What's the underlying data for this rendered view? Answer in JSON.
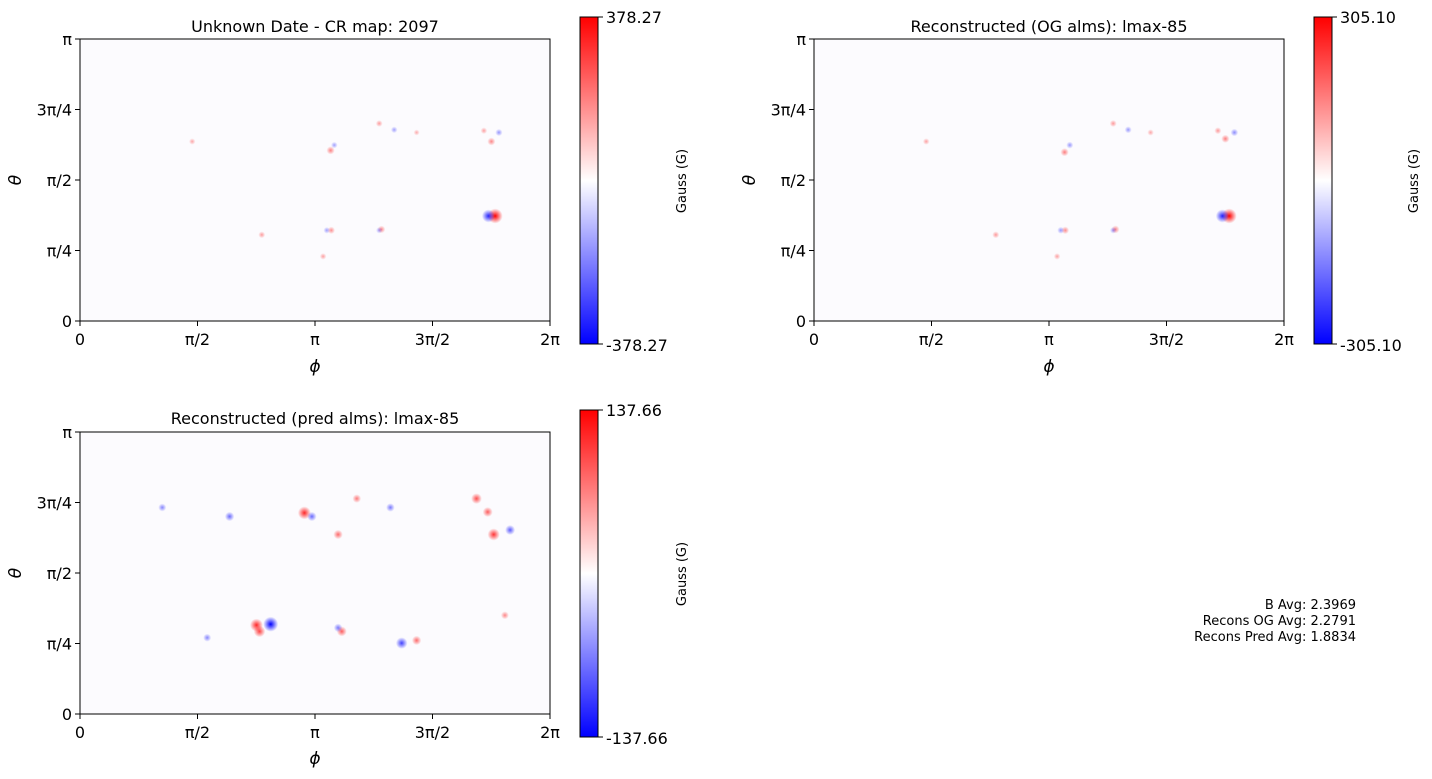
{
  "chart_data": [
    {
      "type": "heatmap",
      "title": "Unknown Date - CR map: 2097",
      "xlabel": "ϕ",
      "ylabel": "θ",
      "x_ticks": [
        "0",
        "π/2",
        "π",
        "3π/2",
        "2π"
      ],
      "y_ticks": [
        "0",
        "π/4",
        "π/2",
        "3π/4",
        "π"
      ],
      "xlim": [
        0,
        6.2832
      ],
      "ylim": [
        0,
        3.1416
      ],
      "colorbar": {
        "label": "Gauss (G)",
        "max_label": "378.27",
        "min_label": "-378.27",
        "max": 378.27,
        "min": -378.27,
        "colormap": "bwr"
      },
      "features": [
        {
          "phi": 5.55,
          "theta": 1.17,
          "value": 378.27
        },
        {
          "phi": 5.46,
          "theta": 1.17,
          "value": -300
        },
        {
          "phi": 3.36,
          "theta": 1.01,
          "value": 90
        },
        {
          "phi": 3.3,
          "theta": 1.01,
          "value": -60
        },
        {
          "phi": 4.03,
          "theta": 1.02,
          "value": 100
        },
        {
          "phi": 4.0,
          "theta": 1.01,
          "value": -50
        },
        {
          "phi": 3.35,
          "theta": 1.9,
          "value": 120
        },
        {
          "phi": 3.4,
          "theta": 1.96,
          "value": -60
        },
        {
          "phi": 4.0,
          "theta": 2.2,
          "value": 70
        },
        {
          "phi": 4.2,
          "theta": 2.13,
          "value": -60
        },
        {
          "phi": 5.5,
          "theta": 2.0,
          "value": 110
        },
        {
          "phi": 5.6,
          "theta": 2.1,
          "value": -80
        },
        {
          "phi": 5.4,
          "theta": 2.12,
          "value": 60
        },
        {
          "phi": 1.5,
          "theta": 2.0,
          "value": 50
        },
        {
          "phi": 2.43,
          "theta": 0.96,
          "value": 70
        },
        {
          "phi": 3.25,
          "theta": 0.72,
          "value": 60
        },
        {
          "phi": 4.5,
          "theta": 2.1,
          "value": 40
        }
      ]
    },
    {
      "type": "heatmap",
      "title": "Reconstructed (OG alms): lmax-85",
      "xlabel": "ϕ",
      "ylabel": "θ",
      "x_ticks": [
        "0",
        "π/2",
        "π",
        "3π/2",
        "2π"
      ],
      "y_ticks": [
        "0",
        "π/4",
        "π/2",
        "3π/4",
        "π"
      ],
      "xlim": [
        0,
        6.2832
      ],
      "ylim": [
        0,
        3.1416
      ],
      "colorbar": {
        "label": "Gauss (G)",
        "max_label": "305.10",
        "min_label": "-305.10",
        "max": 305.1,
        "min": -305.1,
        "colormap": "bwr"
      },
      "features": [
        {
          "phi": 5.55,
          "theta": 1.17,
          "value": 305.1
        },
        {
          "phi": 5.46,
          "theta": 1.17,
          "value": -250
        },
        {
          "phi": 3.36,
          "theta": 1.01,
          "value": 80
        },
        {
          "phi": 3.3,
          "theta": 1.01,
          "value": -60
        },
        {
          "phi": 4.03,
          "theta": 1.02,
          "value": 90
        },
        {
          "phi": 4.0,
          "theta": 1.01,
          "value": -50
        },
        {
          "phi": 3.35,
          "theta": 1.88,
          "value": 100
        },
        {
          "phi": 3.42,
          "theta": 1.96,
          "value": -60
        },
        {
          "phi": 4.0,
          "theta": 2.2,
          "value": 60
        },
        {
          "phi": 4.2,
          "theta": 2.13,
          "value": -60
        },
        {
          "phi": 5.5,
          "theta": 2.03,
          "value": 100
        },
        {
          "phi": 5.62,
          "theta": 2.1,
          "value": -80
        },
        {
          "phi": 5.4,
          "theta": 2.12,
          "value": 60
        },
        {
          "phi": 1.5,
          "theta": 2.0,
          "value": 50
        },
        {
          "phi": 2.43,
          "theta": 0.96,
          "value": 60
        },
        {
          "phi": 3.25,
          "theta": 0.72,
          "value": 50
        },
        {
          "phi": 4.5,
          "theta": 2.1,
          "value": 40
        }
      ]
    },
    {
      "type": "heatmap",
      "title": "Reconstructed (pred alms): lmax-85",
      "xlabel": "ϕ",
      "ylabel": "θ",
      "x_ticks": [
        "0",
        "π/2",
        "π",
        "3π/2",
        "2π"
      ],
      "y_ticks": [
        "0",
        "π/4",
        "π/2",
        "3π/4",
        "π"
      ],
      "xlim": [
        0,
        6.2832
      ],
      "ylim": [
        0,
        3.1416
      ],
      "colorbar": {
        "label": "Gauss (G)",
        "max_label": "137.66",
        "min_label": "-137.66",
        "max": 137.66,
        "min": -137.66,
        "colormap": "bwr"
      },
      "features": [
        {
          "phi": 2.36,
          "theta": 0.99,
          "value": 110
        },
        {
          "phi": 2.4,
          "theta": 0.92,
          "value": 90
        },
        {
          "phi": 2.55,
          "theta": 1.0,
          "value": -137.66
        },
        {
          "phi": 3.5,
          "theta": 0.92,
          "value": 70
        },
        {
          "phi": 3.45,
          "theta": 0.96,
          "value": -50
        },
        {
          "phi": 4.5,
          "theta": 0.82,
          "value": 60
        },
        {
          "phi": 4.3,
          "theta": 0.79,
          "value": -90
        },
        {
          "phi": 1.7,
          "theta": 0.85,
          "value": -40
        },
        {
          "phi": 3.0,
          "theta": 2.24,
          "value": 110
        },
        {
          "phi": 3.1,
          "theta": 2.2,
          "value": -60
        },
        {
          "phi": 3.45,
          "theta": 2.0,
          "value": 60
        },
        {
          "phi": 2.0,
          "theta": 2.2,
          "value": -60
        },
        {
          "phi": 5.3,
          "theta": 2.4,
          "value": 80
        },
        {
          "phi": 5.45,
          "theta": 2.25,
          "value": 70
        },
        {
          "phi": 5.53,
          "theta": 2.0,
          "value": 100
        },
        {
          "phi": 5.75,
          "theta": 2.05,
          "value": -70
        },
        {
          "phi": 4.15,
          "theta": 2.3,
          "value": -50
        },
        {
          "phi": 3.7,
          "theta": 2.4,
          "value": 50
        },
        {
          "phi": 5.68,
          "theta": 1.1,
          "value": 40
        },
        {
          "phi": 1.1,
          "theta": 2.3,
          "value": -40
        }
      ]
    }
  ],
  "stats": [
    "B Avg: 2.3969",
    "Recons OG Avg: 2.2791",
    "Recons Pred Avg: 1.8834"
  ]
}
